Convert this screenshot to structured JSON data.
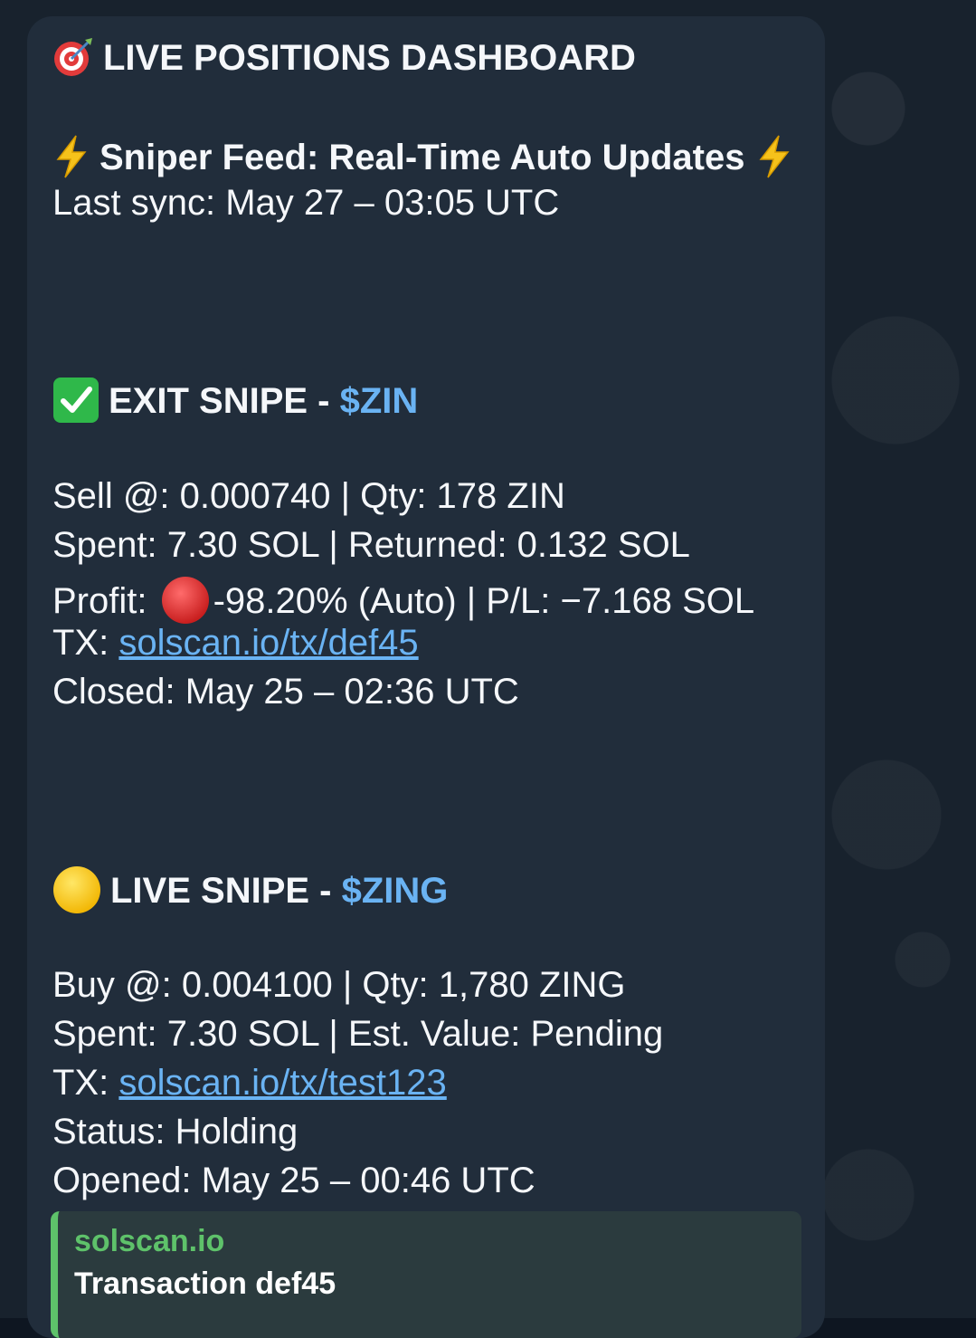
{
  "message": {
    "header_title": "LIVE POSITIONS DASHBOARD",
    "header_icon": "target-icon",
    "feed_title": "Sniper Feed: Real-Time Auto Updates",
    "feed_icon": "lightning-icon",
    "last_sync": "Last sync: May 27 – 03:05 UTC"
  },
  "exit_snipe": {
    "icon": "check-mark-icon",
    "heading": "EXIT SNIPE - ",
    "ticker": "$ZIN",
    "sell_line": "Sell @: 0.000740 | Qty: 178 ZIN",
    "spent_line": "Spent: 7.30 SOL | Returned: 0.132 SOL",
    "profit_label": "Profit:",
    "profit_icon": "red-circle-icon",
    "profit_value": "-98.20% (Auto) | P/L: −7.168 SOL",
    "tx_label": "TX:",
    "tx_link": "solscan.io/tx/def45",
    "closed_line": "Closed: May 25 – 02:36 UTC"
  },
  "live_snipe": {
    "icon": "yellow-circle-icon",
    "heading": "LIVE SNIPE - ",
    "ticker": "$ZING",
    "buy_line": "Buy @: 0.004100 | Qty: 1,780 ZING",
    "spent_line": "Spent: 7.30 SOL | Est. Value: Pending",
    "tx_label": "TX:",
    "tx_link": "solscan.io/tx/test123",
    "status_line": "Status: Holding",
    "opened_line": "Opened: May 25 – 00:46 UTC"
  },
  "link_preview": {
    "site": "solscan.io",
    "title": "Transaction def45"
  },
  "colors": {
    "bubble": "#212d3b",
    "accent": "#6ab3f3",
    "preview_green": "#5ec26a"
  }
}
